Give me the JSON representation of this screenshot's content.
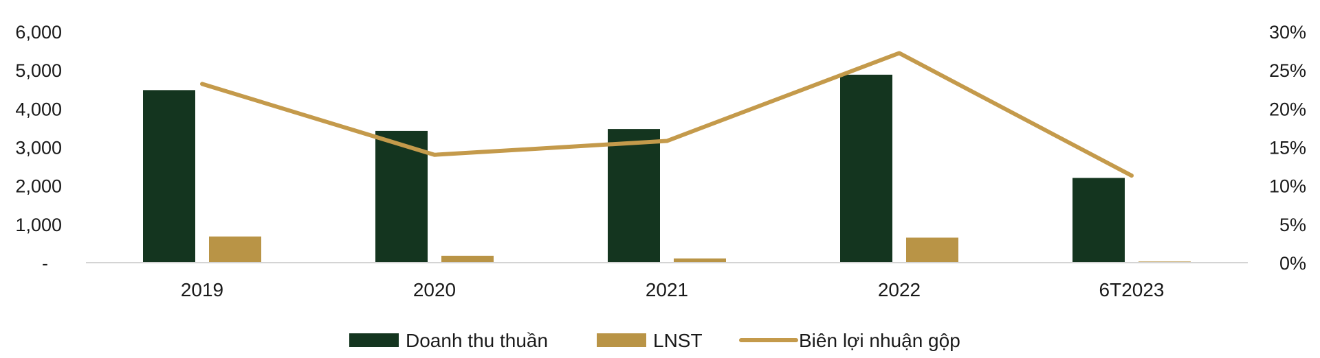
{
  "chart_data": {
    "type": "bar",
    "categories": [
      "2019",
      "2020",
      "2021",
      "2022",
      "6T2023"
    ],
    "series": [
      {
        "name": "Doanh thu thuần",
        "kind": "bar",
        "axis": "left",
        "color": "#14351f",
        "values": [
          4480,
          3420,
          3470,
          4880,
          2200
        ]
      },
      {
        "name": "LNST",
        "kind": "bar",
        "axis": "left",
        "color": "#b99446",
        "values": [
          680,
          180,
          110,
          650,
          30
        ]
      },
      {
        "name": "Biên lợi nhuận gộp",
        "kind": "line",
        "axis": "right",
        "color": "#c49a4b",
        "values": [
          23.2,
          14.0,
          15.8,
          27.2,
          11.3
        ]
      }
    ],
    "left_axis": {
      "ylim": [
        0,
        6000
      ],
      "ticks": [
        "-",
        "1,000",
        "2,000",
        "3,000",
        "4,000",
        "5,000",
        "6,000"
      ]
    },
    "right_axis": {
      "ylim": [
        0,
        30
      ],
      "ticks": [
        "0%",
        "5%",
        "10%",
        "15%",
        "20%",
        "25%",
        "30%"
      ]
    },
    "title": "",
    "xlabel": "",
    "ylabel": "",
    "legend_position": "bottom",
    "grid": false
  }
}
